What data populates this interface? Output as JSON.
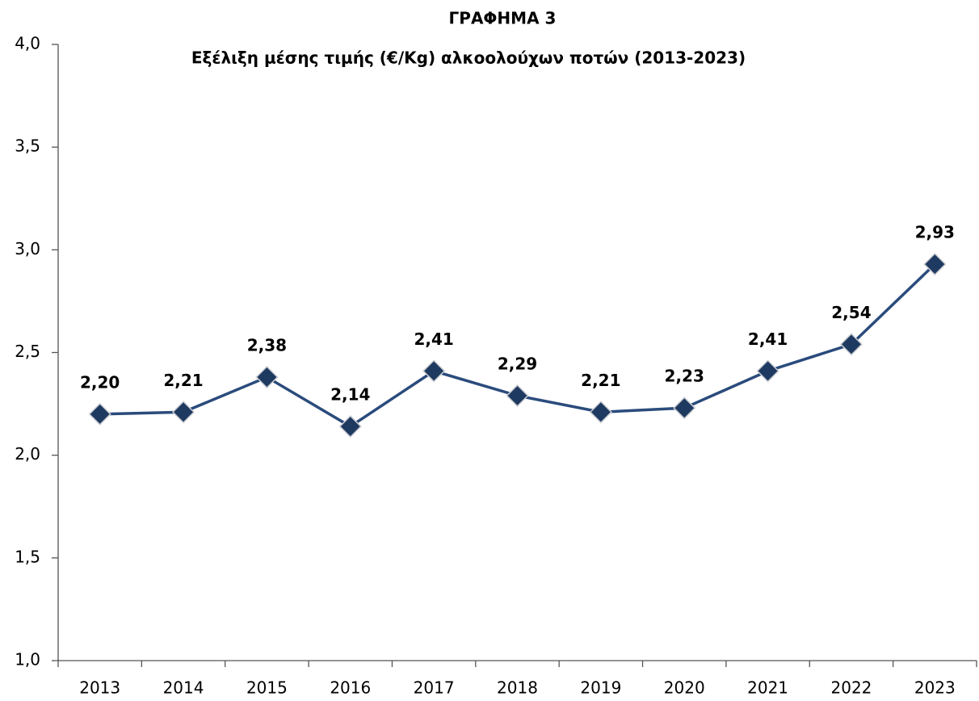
{
  "chart_data": {
    "type": "line",
    "title": "ΓΡΑΦΗΜΑ 3",
    "subtitle": "Εξέλιξη  μέσης τιμής  (€/Kg) αλκοολούχων ποτών (2013-2023)",
    "categories": [
      "2013",
      "2014",
      "2015",
      "2016",
      "2017",
      "2018",
      "2019",
      "2020",
      "2021",
      "2022",
      "2023"
    ],
    "values": [
      2.2,
      2.21,
      2.38,
      2.14,
      2.41,
      2.29,
      2.21,
      2.23,
      2.41,
      2.54,
      2.93
    ],
    "value_labels": [
      "2,20",
      "2,21",
      "2,38",
      "2,14",
      "2,41",
      "2,29",
      "2,21",
      "2,23",
      "2,41",
      "2,54",
      "2,93"
    ],
    "color": "#2a4b7c",
    "marker_color": "#1f3a60",
    "ylim": [
      1.0,
      4.0
    ],
    "yticks": [
      {
        "value": 1.0,
        "label": "1,0"
      },
      {
        "value": 1.5,
        "label": "1,5"
      },
      {
        "value": 2.0,
        "label": "2,0"
      },
      {
        "value": 2.5,
        "label": "2,5"
      },
      {
        "value": 3.0,
        "label": "3,0"
      },
      {
        "value": 3.5,
        "label": "3,5"
      },
      {
        "value": 4.0,
        "label": "4,0"
      }
    ],
    "grid": false
  }
}
